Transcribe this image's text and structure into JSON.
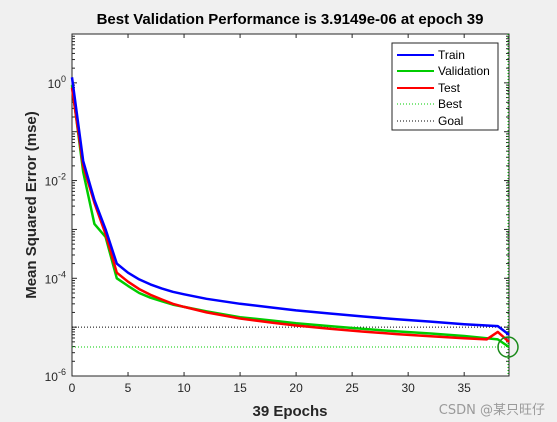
{
  "chart_data": {
    "type": "line",
    "title": "Best Validation Performance is 3.9149e-06 at epoch 39",
    "xlabel": "39 Epochs",
    "ylabel": "Mean Squared Error  (mse)",
    "xlim": [
      0,
      39
    ],
    "ylim": [
      1e-06,
      10
    ],
    "yscale": "log",
    "xticks": [
      0,
      5,
      10,
      15,
      20,
      25,
      30,
      35
    ],
    "yticks": [
      {
        "value": 1e-06,
        "base": "10",
        "exp": "-6"
      },
      {
        "value": 0.0001,
        "base": "10",
        "exp": "-4"
      },
      {
        "value": 0.01,
        "base": "10",
        "exp": "-2"
      },
      {
        "value": 1,
        "base": "10",
        "exp": "0"
      }
    ],
    "grid": false,
    "legend_position": "top-right",
    "series": [
      {
        "name": "Train",
        "color": "#0000ff",
        "style": "solid",
        "x": [
          0,
          1,
          2,
          3,
          4,
          5,
          6,
          7,
          8,
          9,
          10,
          12,
          15,
          18,
          20,
          23,
          26,
          29,
          32,
          35,
          38,
          39
        ],
        "y": [
          1.3,
          0.025,
          0.004,
          0.001,
          0.0002,
          0.00013,
          9.5e-05,
          7.5e-05,
          6.2e-05,
          5.3e-05,
          4.7e-05,
          3.8e-05,
          3e-05,
          2.5e-05,
          2.2e-05,
          1.9e-05,
          1.65e-05,
          1.45e-05,
          1.3e-05,
          1.15e-05,
          1.05e-05,
          7e-06
        ]
      },
      {
        "name": "Validation",
        "color": "#00cc00",
        "style": "solid",
        "x": [
          0,
          1,
          2,
          3,
          4,
          5,
          6,
          7,
          8,
          9,
          10,
          12,
          15,
          18,
          20,
          23,
          26,
          29,
          32,
          35,
          38,
          39
        ],
        "y": [
          0.9,
          0.015,
          0.0013,
          0.0007,
          0.0001,
          7e-05,
          5e-05,
          4e-05,
          3.4e-05,
          2.9e-05,
          2.6e-05,
          2.1e-05,
          1.6e-05,
          1.35e-05,
          1.2e-05,
          1.05e-05,
          9.2e-06,
          8.2e-06,
          7.4e-06,
          6.6e-06,
          5.6e-06,
          3.9149e-06
        ]
      },
      {
        "name": "Test",
        "color": "#ff0000",
        "style": "solid",
        "x": [
          0,
          1,
          2,
          3,
          4,
          5,
          6,
          7,
          8,
          9,
          10,
          12,
          15,
          18,
          20,
          23,
          26,
          29,
          32,
          35,
          37,
          38,
          39
        ],
        "y": [
          0.8,
          0.02,
          0.0035,
          0.0008,
          0.00013,
          8.5e-05,
          6e-05,
          4.6e-05,
          3.7e-05,
          3e-05,
          2.6e-05,
          2e-05,
          1.5e-05,
          1.22e-05,
          1.08e-05,
          9.3e-06,
          8.1e-06,
          7.2e-06,
          6.5e-06,
          5.9e-06,
          5.6e-06,
          8e-06,
          5e-06
        ]
      }
    ],
    "best": {
      "name": "Best",
      "epoch": 39,
      "value": 3.9149e-06,
      "color": "#00cc00",
      "style": "dotted"
    },
    "goal": {
      "name": "Goal",
      "value": 1e-05,
      "color": "#000000",
      "style": "dotted"
    }
  },
  "watermark": "CSDN @某只旺仔"
}
